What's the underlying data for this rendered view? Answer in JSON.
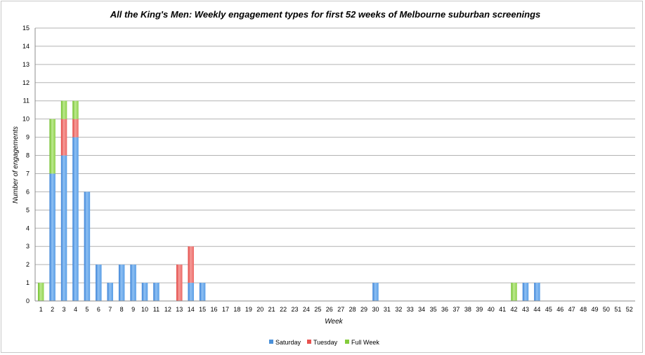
{
  "chart_data": {
    "type": "bar",
    "stacked": true,
    "title": "All the King's Men: Weekly engagement types for first 52 weeks of Melbourne suburban screenings",
    "xlabel": "Week",
    "ylabel": "Number of engagements",
    "ylim": [
      0,
      15
    ],
    "yticks": [
      "0",
      "1",
      "2",
      "3",
      "4",
      "5",
      "6",
      "7",
      "8",
      "9",
      "10",
      "11",
      "12",
      "13",
      "14",
      "15"
    ],
    "grid": true,
    "legend_position": "bottom",
    "categories": [
      "1",
      "2",
      "3",
      "4",
      "5",
      "6",
      "7",
      "8",
      "9",
      "10",
      "11",
      "12",
      "13",
      "14",
      "15",
      "16",
      "17",
      "18",
      "19",
      "20",
      "21",
      "22",
      "23",
      "24",
      "25",
      "26",
      "27",
      "28",
      "29",
      "30",
      "31",
      "32",
      "33",
      "34",
      "35",
      "36",
      "37",
      "38",
      "39",
      "40",
      "41",
      "42",
      "43",
      "44",
      "45",
      "46",
      "47",
      "48",
      "49",
      "50",
      "51",
      "52"
    ],
    "series": [
      {
        "name": "Saturday",
        "color": "#4a90d9",
        "values": [
          0,
          7,
          8,
          9,
          6,
          2,
          1,
          2,
          2,
          1,
          1,
          0,
          0,
          1,
          1,
          0,
          0,
          0,
          0,
          0,
          0,
          0,
          0,
          0,
          0,
          0,
          0,
          0,
          0,
          1,
          0,
          0,
          0,
          0,
          0,
          0,
          0,
          0,
          0,
          0,
          0,
          0,
          1,
          1,
          0,
          0,
          0,
          0,
          0,
          0,
          0,
          0
        ]
      },
      {
        "name": "Tuesday",
        "color": "#e8524f",
        "values": [
          0,
          0,
          2,
          1,
          0,
          0,
          0,
          0,
          0,
          0,
          0,
          0,
          2,
          2,
          0,
          0,
          0,
          0,
          0,
          0,
          0,
          0,
          0,
          0,
          0,
          0,
          0,
          0,
          0,
          0,
          0,
          0,
          0,
          0,
          0,
          0,
          0,
          0,
          0,
          0,
          0,
          0,
          0,
          0,
          0,
          0,
          0,
          0,
          0,
          0,
          0,
          0
        ]
      },
      {
        "name": "Full Week",
        "color": "#84cc3c",
        "values": [
          1,
          3,
          1,
          1,
          0,
          0,
          0,
          0,
          0,
          0,
          0,
          0,
          0,
          0,
          0,
          0,
          0,
          0,
          0,
          0,
          0,
          0,
          0,
          0,
          0,
          0,
          0,
          0,
          0,
          0,
          0,
          0,
          0,
          0,
          0,
          0,
          0,
          0,
          0,
          0,
          0,
          1,
          0,
          0,
          0,
          0,
          0,
          0,
          0,
          0,
          0,
          0
        ]
      }
    ]
  }
}
